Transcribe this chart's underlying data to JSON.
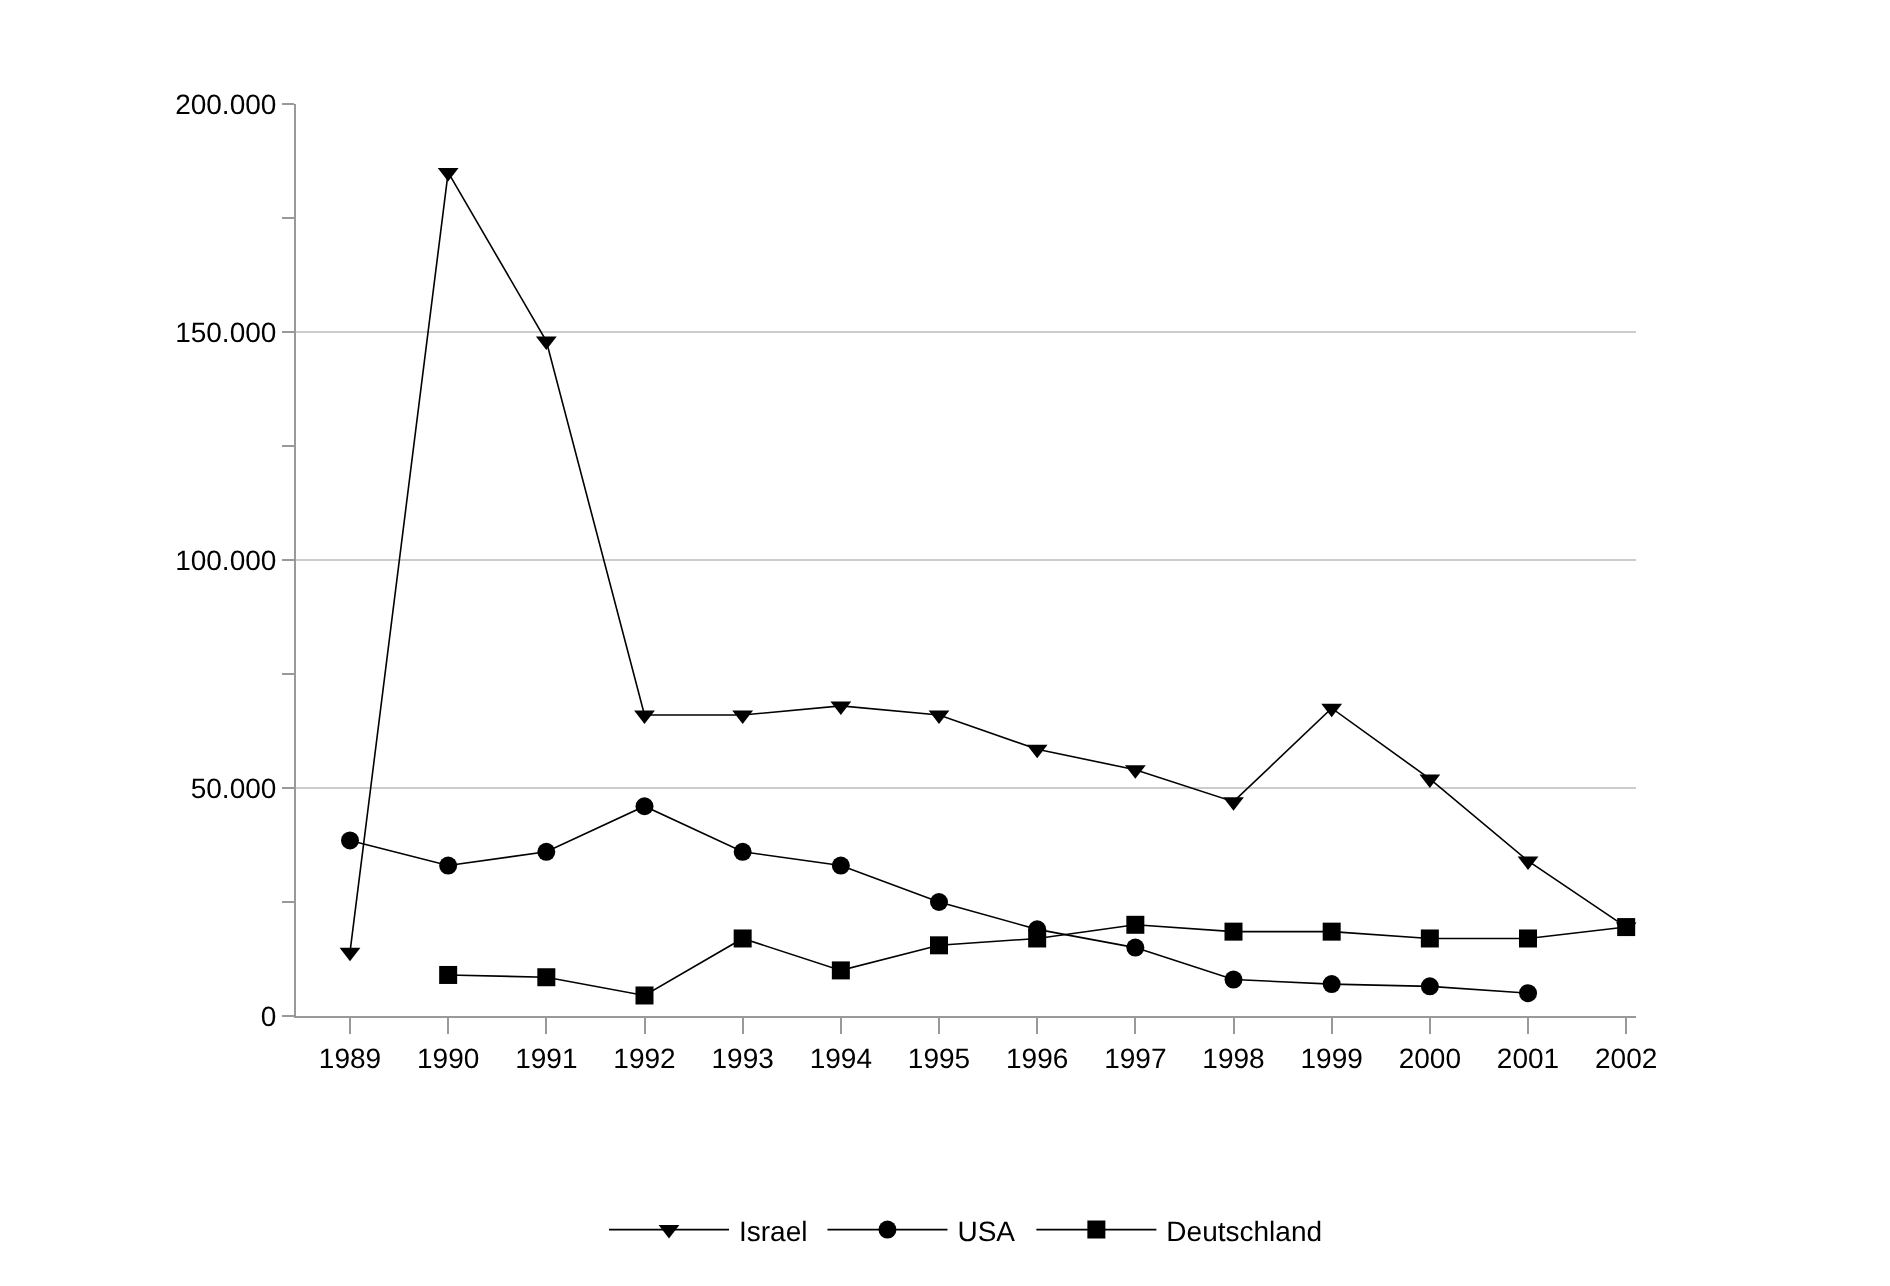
{
  "chart_data": {
    "type": "line",
    "x": [
      1989,
      1990,
      1991,
      1992,
      1993,
      1994,
      1995,
      1996,
      1997,
      1998,
      1999,
      2000,
      2001,
      2002
    ],
    "series": [
      {
        "name": "Israel",
        "color": "#000000",
        "marker": "triangle",
        "values": [
          14000,
          185000,
          148000,
          66000,
          66000,
          68000,
          66000,
          58500,
          54000,
          47000,
          67500,
          52000,
          34000,
          19500
        ]
      },
      {
        "name": "USA",
        "color": "#000000",
        "marker": "circle",
        "values": [
          38500,
          33000,
          36000,
          46000,
          36000,
          33000,
          25000,
          19000,
          15000,
          8000,
          7000,
          6500,
          5000,
          null
        ]
      },
      {
        "name": "Deutschland",
        "color": "#000000",
        "marker": "square",
        "values": [
          null,
          9000,
          8500,
          4500,
          17000,
          10000,
          15500,
          17000,
          20000,
          18500,
          18500,
          17000,
          17000,
          19500
        ]
      }
    ],
    "xlim": [
      1988.45,
      2002.1
    ],
    "xticks": [
      1989,
      1990,
      1991,
      1992,
      1993,
      1994,
      1995,
      1996,
      1997,
      1998,
      1999,
      2000,
      2001,
      2002
    ],
    "ylim": [
      0,
      200000
    ],
    "yticks": [
      {
        "value": 0,
        "label": "0"
      },
      {
        "value": 25000,
        "label": null
      },
      {
        "value": 50000,
        "label": "50.000"
      },
      {
        "value": 75000,
        "label": null
      },
      {
        "value": 100000,
        "label": "100.000"
      },
      {
        "value": 125000,
        "label": null
      },
      {
        "value": 150000,
        "label": "150.000"
      },
      {
        "value": 175000,
        "label": null
      },
      {
        "value": 200000,
        "label": "200.000"
      }
    ],
    "grid": "y",
    "legend": "bottom",
    "line_style": "solid"
  }
}
